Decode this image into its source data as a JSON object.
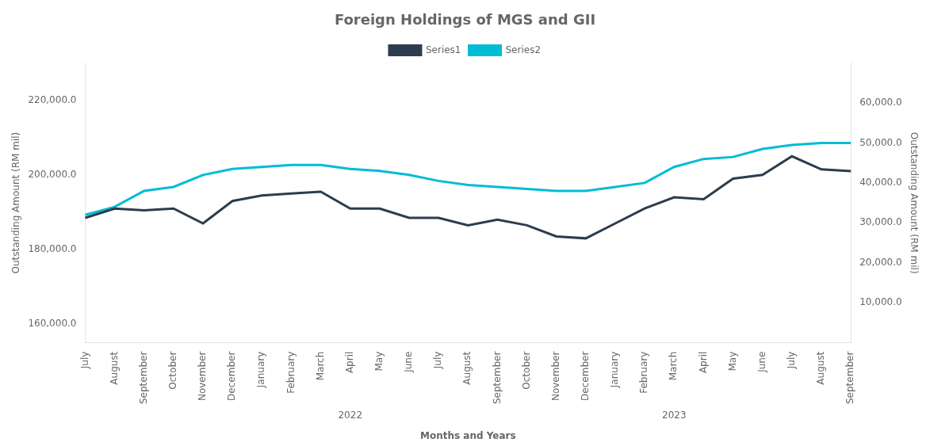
{
  "chart_data": {
    "type": "line",
    "title": "Foreign Holdings of MGS and GII",
    "xlabel": "Months and Years",
    "ylabel": "Outstanding Amount (RM mil)",
    "y2label": "Outstanding Amount (RM mil)",
    "categories": [
      "July",
      "August",
      "September",
      "October",
      "November",
      "December",
      "January",
      "February",
      "March",
      "April",
      "May",
      "June",
      "July",
      "August",
      "September",
      "October",
      "November",
      "December",
      "January",
      "February",
      "March",
      "April",
      "May",
      "June",
      "July",
      "August",
      "September"
    ],
    "series": [
      {
        "name": "Series1",
        "color": "#2d3c4e",
        "axis": "y",
        "values": [
          188500,
          191000,
          190500,
          191000,
          187000,
          193000,
          194500,
          195000,
          195500,
          191000,
          191000,
          188500,
          188500,
          186500,
          188000,
          186500,
          183500,
          183000,
          187000,
          191000,
          194000,
          193500,
          199000,
          200000,
          205000,
          201500,
          201000
        ]
      },
      {
        "name": "Series2",
        "color": "#00bcd4",
        "axis": "y2",
        "values": [
          32000,
          34000,
          38000,
          39000,
          42000,
          43500,
          44000,
          44500,
          44500,
          43500,
          43000,
          42000,
          40500,
          39500,
          39000,
          38500,
          38000,
          38000,
          39000,
          40000,
          44000,
          46000,
          46500,
          48500,
          49500,
          50000,
          50000
        ]
      }
    ],
    "annotations": [
      {
        "text": "2022",
        "index": 9
      },
      {
        "text": "2023",
        "index": 20
      }
    ],
    "ylim": [
      155000,
      230000
    ],
    "yticks": [
      {
        "value": 160000,
        "label": "160,000.0"
      },
      {
        "value": 180000,
        "label": "180,000.0"
      },
      {
        "value": 200000,
        "label": "200,000.0"
      },
      {
        "value": 220000,
        "label": "220,000.0"
      }
    ],
    "y2lim": [
      0,
      70000
    ],
    "y2ticks": [
      {
        "value": 10000,
        "label": "10,000.0"
      },
      {
        "value": 20000,
        "label": "20,000.0"
      },
      {
        "value": 30000,
        "label": "30,000.0"
      },
      {
        "value": 40000,
        "label": "40,000.0"
      },
      {
        "value": 50000,
        "label": "50,000.0"
      },
      {
        "value": 60000,
        "label": "60,000.0"
      }
    ],
    "grid": false,
    "legend": "top",
    "marker": "none"
  }
}
